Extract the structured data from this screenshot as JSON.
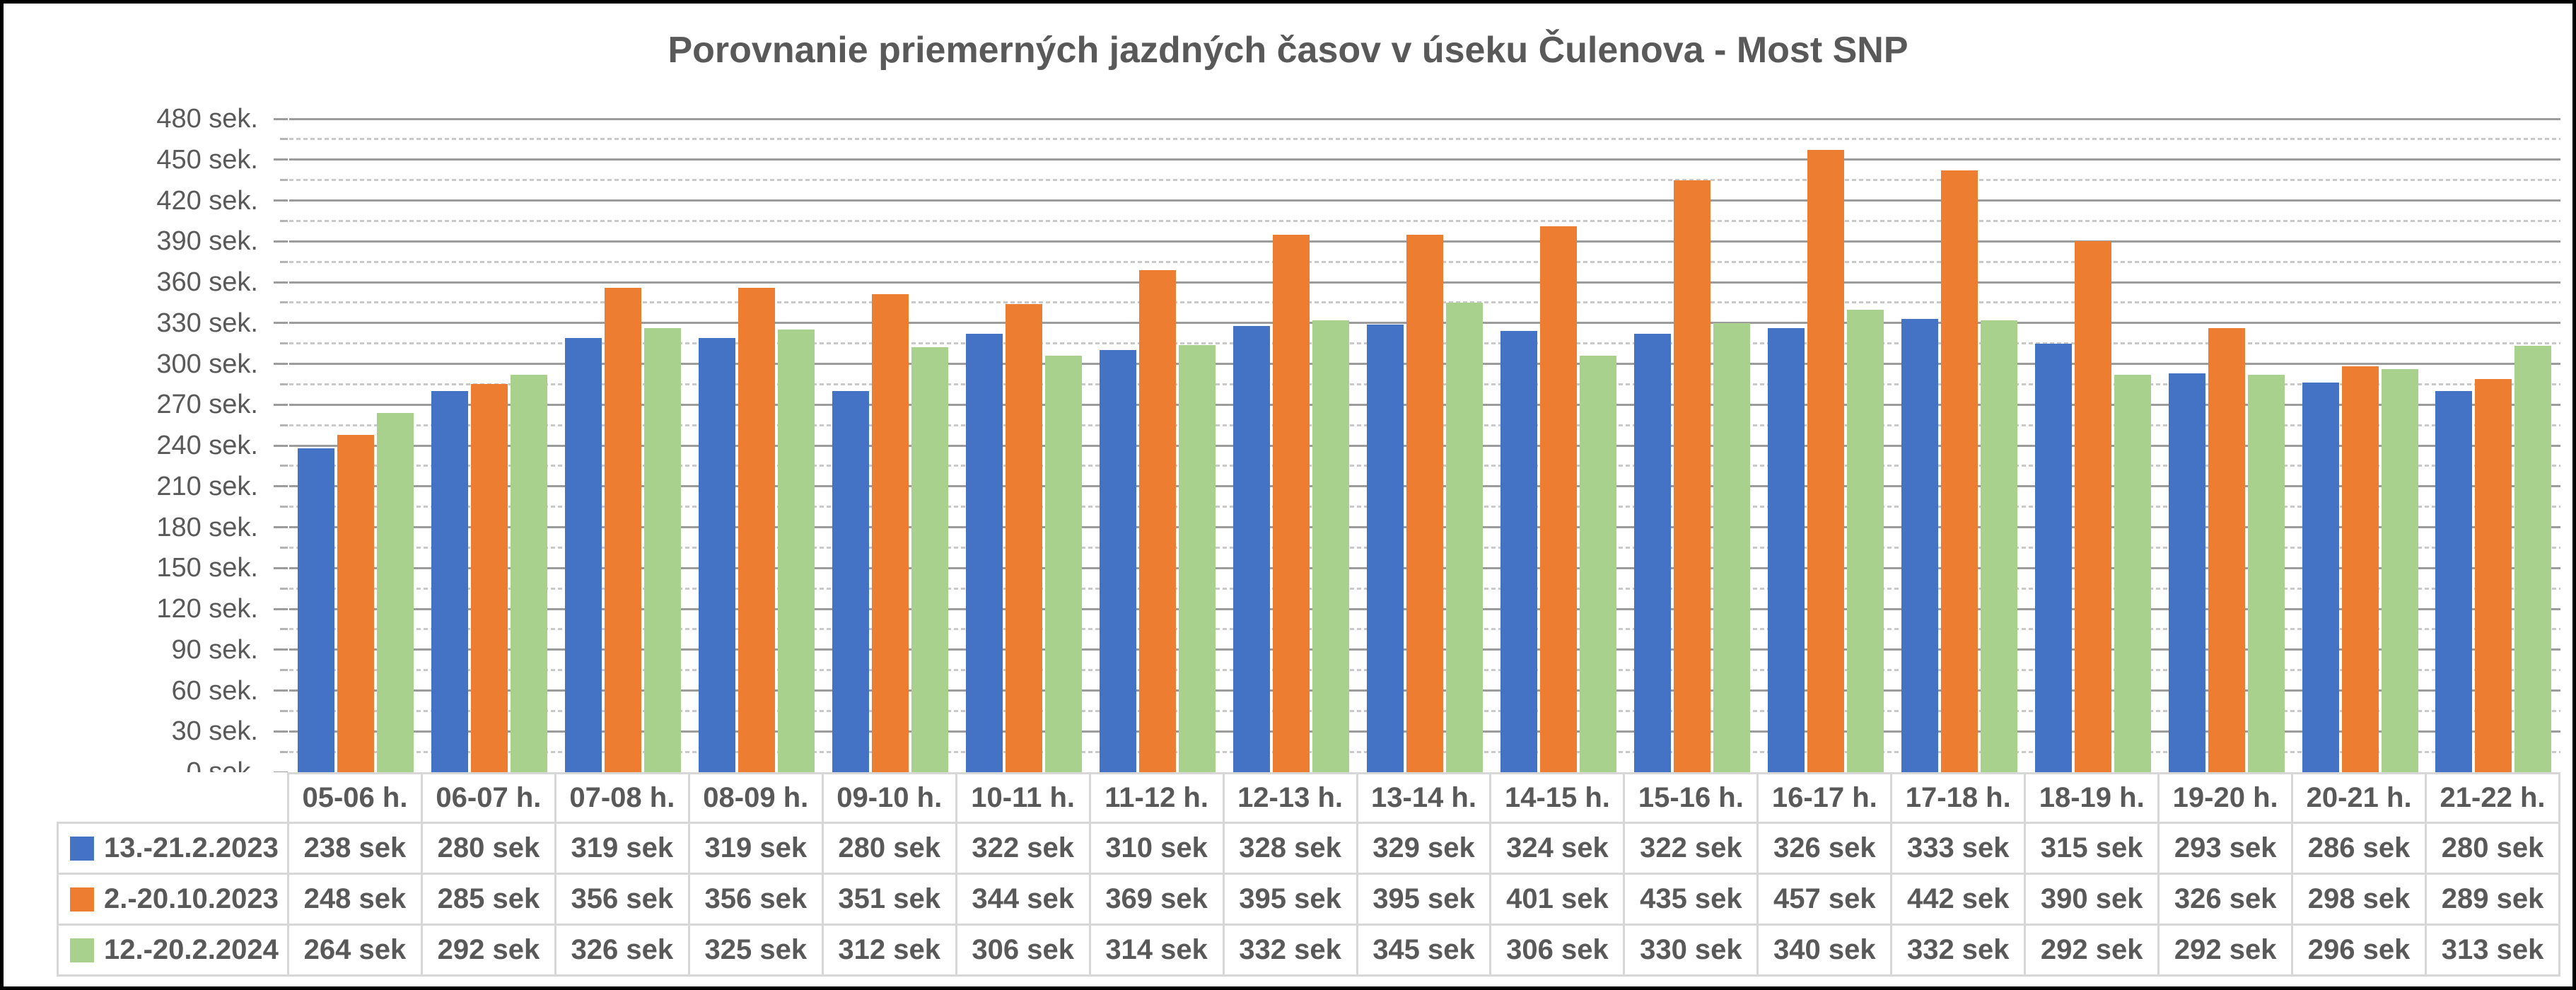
{
  "title": "Porovnanie priemerných jazdných časov v úseku Čulenova - Most SNP",
  "chart_data": {
    "type": "bar",
    "title": "Porovnanie priemerných jazdných časov v úseku Čulenova - Most SNP",
    "categories": [
      "05-06 h.",
      "06-07 h.",
      "07-08 h.",
      "08-09 h.",
      "09-10 h.",
      "10-11 h.",
      "11-12 h.",
      "12-13 h.",
      "13-14 h.",
      "14-15 h.",
      "15-16 h.",
      "16-17 h.",
      "17-18 h.",
      "18-19 h.",
      "19-20 h.",
      "20-21 h.",
      "21-22 h."
    ],
    "series": [
      {
        "name": "13.-21.2.2023",
        "color": "#4472C4",
        "values": [
          238,
          280,
          319,
          319,
          280,
          322,
          310,
          328,
          329,
          324,
          322,
          326,
          333,
          315,
          293,
          286,
          280
        ]
      },
      {
        "name": "2.-20.10.2023",
        "color": "#ED7D31",
        "values": [
          248,
          285,
          356,
          356,
          351,
          344,
          369,
          395,
          395,
          401,
          435,
          457,
          442,
          390,
          326,
          298,
          289
        ]
      },
      {
        "name": "12.-20.2.2024",
        "color": "#A9D18E",
        "values": [
          264,
          292,
          326,
          325,
          312,
          306,
          314,
          332,
          345,
          306,
          330,
          340,
          332,
          292,
          292,
          296,
          313
        ]
      }
    ],
    "y_axis": {
      "min": 0,
      "max": 480,
      "major_step": 30,
      "minor_step": 15,
      "tick_label_suffix": " sek."
    },
    "table_value_suffix": " sek",
    "legend_position": "table-left",
    "grid": true,
    "xlabel": "",
    "ylabel": ""
  },
  "colors": {
    "series_blue": "#4472C4",
    "series_orange": "#ED7D31",
    "series_green": "#A9D18E",
    "title_text": "#595959",
    "axis_text": "#595959",
    "table_text": "#595959",
    "major_gridline": "#9c9c9c",
    "minor_gridline": "#c9c9c9",
    "table_border": "#d7d7d7",
    "frame_border": "#000000",
    "background": "#ffffff"
  }
}
